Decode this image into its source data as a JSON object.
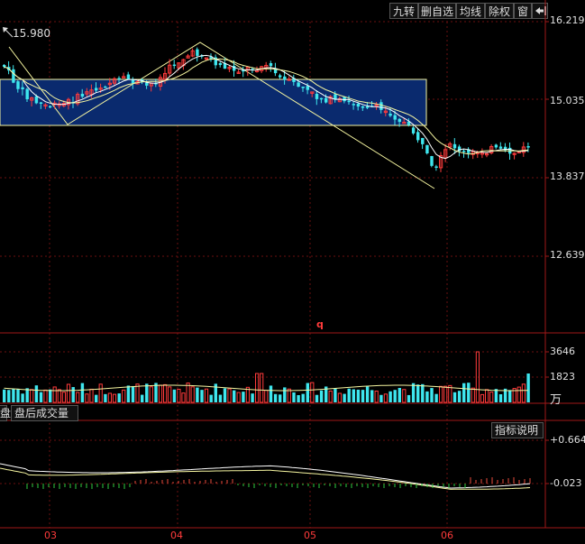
{
  "toolbar": {
    "items": [
      "九转",
      "删自选",
      "均线",
      "除权",
      "窗"
    ]
  },
  "price_panel": {
    "high_marker": "15.980",
    "y_labels": [
      "16.219",
      "15.035",
      "13.837",
      "12.639"
    ]
  },
  "volume_panel": {
    "y_labels": [
      "3646",
      "1823"
    ],
    "unit": "万"
  },
  "sub_tabs": {
    "left_partial": "盘",
    "after_hours": "盘后成交量"
  },
  "indicator_panel": {
    "help_button": "指标说明",
    "y_labels": [
      "+0.664",
      "-0.023"
    ]
  },
  "x_axis": {
    "months": [
      "03",
      "04",
      "05",
      "06"
    ]
  },
  "misc": {
    "q_marker": "q"
  },
  "colors": {
    "up": "#ff3b3b",
    "down": "#3ee6ee",
    "ma": "#f5f5a0",
    "box_fill": "#0a2a6e",
    "grid": "#6b1010"
  }
}
